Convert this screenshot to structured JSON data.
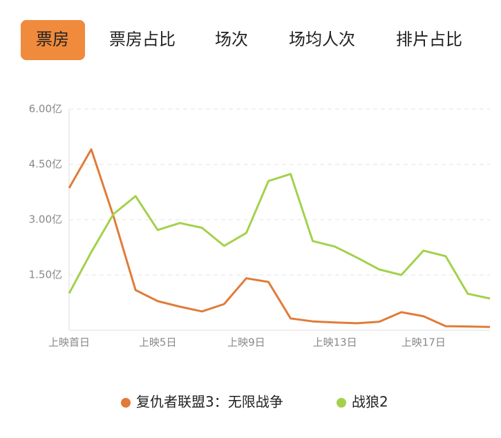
{
  "tabs": {
    "items": [
      "票房",
      "票房占比",
      "场次",
      "场均人次",
      "排片占比"
    ],
    "active": 0
  },
  "chart_data": {
    "type": "line",
    "categories": [
      "上映首日",
      null,
      null,
      null,
      "上映5日",
      null,
      null,
      null,
      "上映9日",
      null,
      null,
      null,
      "上映13日",
      null,
      null,
      null,
      "上映17日",
      null,
      null,
      null
    ],
    "series": [
      {
        "name": "复仇者联盟3：无限战争",
        "color": "#e07b39",
        "values": [
          3.86,
          4.91,
          3.1,
          1.09,
          0.79,
          0.64,
          0.51,
          0.71,
          1.41,
          1.31,
          0.32,
          0.24,
          0.21,
          0.19,
          0.23,
          0.49,
          0.38,
          0.11,
          0.1,
          0.09
        ]
      },
      {
        "name": "战狼2",
        "color": "#a3d14b",
        "values": [
          1.0,
          2.12,
          3.15,
          3.64,
          2.72,
          2.91,
          2.78,
          2.29,
          2.64,
          4.05,
          4.24,
          2.42,
          2.27,
          1.97,
          1.65,
          1.5,
          2.16,
          2.01,
          0.99,
          0.86
        ]
      }
    ],
    "ylim": [
      0,
      6
    ],
    "yticks": [
      {
        "value": 1.5,
        "label": "1.50亿"
      },
      {
        "value": 3,
        "label": "3.00亿"
      },
      {
        "value": 4.5,
        "label": "4.50亿"
      },
      {
        "value": 6,
        "label": "6.00亿"
      }
    ],
    "grid": true
  }
}
